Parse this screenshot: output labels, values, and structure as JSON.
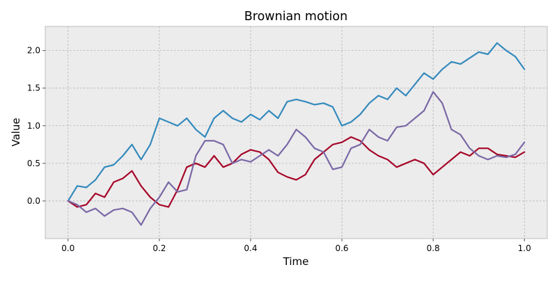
{
  "chart_data": {
    "type": "line",
    "title": "Brownian motion",
    "xlabel": "Time",
    "ylabel": "Value",
    "xlim": [
      -0.05,
      1.05
    ],
    "ylim": [
      -0.5,
      2.32
    ],
    "xticks": [
      0.0,
      0.2,
      0.4,
      0.6,
      0.8,
      1.0
    ],
    "xtick_labels": [
      "0.0",
      "0.2",
      "0.4",
      "0.6",
      "0.8",
      "1.0"
    ],
    "yticks": [
      0.0,
      0.5,
      1.0,
      1.5,
      2.0
    ],
    "ytick_labels": [
      "0.0",
      "0.5",
      "1.0",
      "1.5",
      "2.0"
    ],
    "grid": true,
    "legend": "none",
    "background_color": "#ececec",
    "x": [
      0.0,
      0.02,
      0.04,
      0.06,
      0.08,
      0.1,
      0.12,
      0.14,
      0.16,
      0.18,
      0.2,
      0.22,
      0.24,
      0.26,
      0.28,
      0.3,
      0.32,
      0.34,
      0.36,
      0.38,
      0.4,
      0.42,
      0.44,
      0.46,
      0.48,
      0.5,
      0.52,
      0.54,
      0.56,
      0.58,
      0.6,
      0.62,
      0.64,
      0.66,
      0.68,
      0.7,
      0.72,
      0.74,
      0.76,
      0.78,
      0.8,
      0.82,
      0.84,
      0.86,
      0.88,
      0.9,
      0.92,
      0.94,
      0.96,
      0.98,
      1.0
    ],
    "series": [
      {
        "color": "#348abd",
        "values": [
          0.0,
          0.2,
          0.18,
          0.28,
          0.45,
          0.48,
          0.6,
          0.75,
          0.55,
          0.75,
          1.1,
          1.05,
          1.0,
          1.1,
          0.95,
          0.85,
          1.1,
          1.2,
          1.1,
          1.05,
          1.15,
          1.08,
          1.2,
          1.1,
          1.32,
          1.35,
          1.32,
          1.28,
          1.3,
          1.25,
          1.0,
          1.05,
          1.15,
          1.3,
          1.4,
          1.35,
          1.5,
          1.4,
          1.55,
          1.7,
          1.62,
          1.75,
          1.85,
          1.82,
          1.9,
          1.98,
          1.95,
          2.1,
          2.0,
          1.92,
          1.75
        ]
      },
      {
        "color": "#a60628",
        "values": [
          0.0,
          -0.08,
          -0.05,
          0.1,
          0.05,
          0.25,
          0.3,
          0.4,
          0.2,
          0.05,
          -0.05,
          -0.08,
          0.15,
          0.45,
          0.5,
          0.45,
          0.6,
          0.45,
          0.5,
          0.62,
          0.68,
          0.65,
          0.55,
          0.38,
          0.32,
          0.28,
          0.35,
          0.55,
          0.65,
          0.75,
          0.78,
          0.85,
          0.8,
          0.68,
          0.6,
          0.55,
          0.45,
          0.5,
          0.55,
          0.5,
          0.35,
          0.45,
          0.55,
          0.65,
          0.6,
          0.7,
          0.7,
          0.62,
          0.6,
          0.58,
          0.65
        ]
      },
      {
        "color": "#7a68a6",
        "values": [
          0.0,
          -0.05,
          -0.15,
          -0.1,
          -0.2,
          -0.12,
          -0.1,
          -0.15,
          -0.32,
          -0.1,
          0.05,
          0.25,
          0.12,
          0.15,
          0.6,
          0.8,
          0.8,
          0.75,
          0.5,
          0.55,
          0.52,
          0.6,
          0.68,
          0.6,
          0.75,
          0.95,
          0.85,
          0.7,
          0.65,
          0.42,
          0.45,
          0.7,
          0.75,
          0.95,
          0.85,
          0.8,
          0.98,
          1.0,
          1.1,
          1.2,
          1.45,
          1.3,
          0.95,
          0.88,
          0.7,
          0.6,
          0.55,
          0.6,
          0.58,
          0.62,
          0.78
        ]
      }
    ]
  }
}
